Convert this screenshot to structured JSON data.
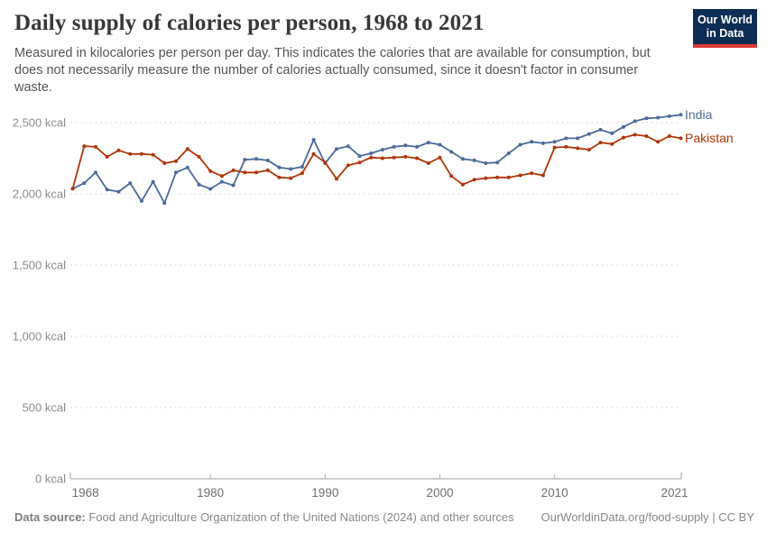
{
  "header": {
    "title": "Daily supply of calories per person, 1968 to 2021",
    "subtitle_lines": [
      "Measured in kilocalories per person per day. This indicates the calories that are available for consumption, but",
      "does not necessarily measure the number of calories actually consumed, since it doesn't factor in consumer",
      "waste."
    ],
    "logo": {
      "line1": "Our World",
      "line2": "in Data",
      "bg_color": "#0d2e54",
      "stripe_color": "#dc3a34"
    }
  },
  "chart_data": {
    "type": "line",
    "title": "Daily supply of calories per person, 1968 to 2021",
    "unit": "kcal",
    "ylabel": "",
    "xlabel": "",
    "ylim": [
      0,
      2600
    ],
    "y_ticks": [
      0,
      500,
      1000,
      1500,
      2000,
      2500
    ],
    "y_tick_suffix": " kcal",
    "x_ticks": [
      1968,
      1980,
      1990,
      2000,
      2010,
      2021
    ],
    "grid": "horizontal-dashed",
    "legend_position": "labels-at-line-end",
    "x": [
      1968,
      1969,
      1970,
      1971,
      1972,
      1973,
      1974,
      1975,
      1976,
      1977,
      1978,
      1979,
      1980,
      1981,
      1982,
      1983,
      1984,
      1985,
      1986,
      1987,
      1988,
      1989,
      1990,
      1991,
      1992,
      1993,
      1994,
      1995,
      1996,
      1997,
      1998,
      1999,
      2000,
      2001,
      2002,
      2003,
      2004,
      2005,
      2006,
      2007,
      2008,
      2009,
      2010,
      2011,
      2012,
      2013,
      2014,
      2015,
      2016,
      2017,
      2018,
      2019,
      2020,
      2021
    ],
    "series": [
      {
        "name": "India",
        "color": "#4C6A9C",
        "values": [
          2037,
          2075,
          2150,
          2030,
          2015,
          2075,
          1950,
          2085,
          1935,
          2150,
          2185,
          2065,
          2035,
          2085,
          2060,
          2240,
          2245,
          2235,
          2185,
          2175,
          2190,
          2380,
          2215,
          2315,
          2335,
          2265,
          2285,
          2310,
          2330,
          2340,
          2330,
          2360,
          2345,
          2295,
          2245,
          2235,
          2215,
          2220,
          2285,
          2345,
          2365,
          2355,
          2365,
          2390,
          2390,
          2420,
          2450,
          2425,
          2470,
          2510,
          2530,
          2535,
          2545,
          2555
        ]
      },
      {
        "name": "Pakistan",
        "color": "#B13507",
        "values": [
          2037,
          2335,
          2330,
          2260,
          2305,
          2280,
          2280,
          2275,
          2215,
          2230,
          2315,
          2260,
          2160,
          2125,
          2165,
          2150,
          2150,
          2165,
          2115,
          2110,
          2145,
          2280,
          2220,
          2105,
          2200,
          2220,
          2255,
          2250,
          2255,
          2260,
          2250,
          2215,
          2255,
          2125,
          2065,
          2100,
          2110,
          2115,
          2115,
          2130,
          2145,
          2130,
          2325,
          2330,
          2320,
          2310,
          2360,
          2350,
          2395,
          2415,
          2405,
          2365,
          2405,
          2390
        ]
      }
    ]
  },
  "footer": {
    "datasource_label": "Data source:",
    "datasource_text": " Food and Agriculture Organization of the United Nations (2024) and other sources",
    "link_text": "OurWorldinData.org/food-supply | CC BY"
  }
}
